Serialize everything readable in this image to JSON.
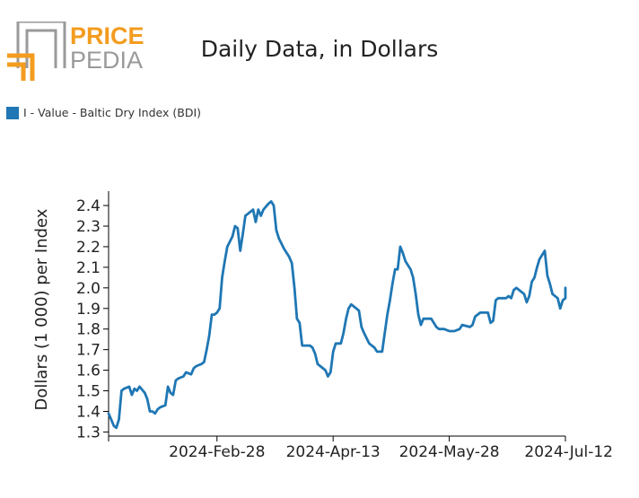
{
  "logo": {
    "word1": "PRICE",
    "word2": "PEDIA",
    "accent": "#f39c1f",
    "gray": "#9a9a9a"
  },
  "title": "Daily Data, in Dollars",
  "legend": {
    "label": "I - Value - Baltic Dry Index (BDI)"
  },
  "colors": {
    "series": "#1f77b4",
    "axis": "#000000",
    "text": "#222222"
  },
  "chart_data": {
    "type": "line",
    "title": "Daily Data, in Dollars",
    "ylabel": "Dollars (1 000) per Index",
    "ylim": [
      1.28,
      2.47
    ],
    "yticks": [
      1.3,
      1.4,
      1.5,
      1.6,
      1.7,
      1.8,
      1.9,
      2.0,
      2.1,
      2.2,
      2.3,
      2.4
    ],
    "ytick_labels": [
      "1.3",
      "1.4",
      "1.5",
      "1.6",
      "1.7",
      "1.8",
      "1.9",
      "2.0",
      "2.1",
      "2.2",
      "2.3",
      "2.4"
    ],
    "xlim": [
      "2024-01-17",
      "2024-07-12"
    ],
    "xticks": [
      "2024-01-17",
      "2024-02-28",
      "2024-04-13",
      "2024-05-28",
      "2024-07-12"
    ],
    "xtick_labels": [
      "",
      "2024-Feb-28",
      "2024-Apr-13",
      "2024-May-28",
      "2024-Jul-12"
    ],
    "legend_position": "top-left",
    "grid": false,
    "series": [
      {
        "name": "I - Value - Baltic Dry Index (BDI)",
        "color": "#1f77b4",
        "points": [
          [
            "2024-01-17",
            1.39
          ],
          [
            "2024-01-18",
            1.36
          ],
          [
            "2024-01-19",
            1.33
          ],
          [
            "2024-01-20",
            1.32
          ],
          [
            "2024-01-21",
            1.36
          ],
          [
            "2024-01-22",
            1.5
          ],
          [
            "2024-01-23",
            1.51
          ],
          [
            "2024-01-25",
            1.52
          ],
          [
            "2024-01-26",
            1.48
          ],
          [
            "2024-01-27",
            1.51
          ],
          [
            "2024-01-28",
            1.5
          ],
          [
            "2024-01-29",
            1.52
          ],
          [
            "2024-01-31",
            1.49
          ],
          [
            "2024-02-01",
            1.46
          ],
          [
            "2024-02-02",
            1.4
          ],
          [
            "2024-02-03",
            1.4
          ],
          [
            "2024-02-04",
            1.39
          ],
          [
            "2024-02-05",
            1.41
          ],
          [
            "2024-02-06",
            1.42
          ],
          [
            "2024-02-08",
            1.43
          ],
          [
            "2024-02-09",
            1.52
          ],
          [
            "2024-02-10",
            1.49
          ],
          [
            "2024-02-11",
            1.48
          ],
          [
            "2024-02-12",
            1.55
          ],
          [
            "2024-02-13",
            1.56
          ],
          [
            "2024-02-15",
            1.57
          ],
          [
            "2024-02-16",
            1.59
          ],
          [
            "2024-02-18",
            1.58
          ],
          [
            "2024-02-19",
            1.61
          ],
          [
            "2024-02-20",
            1.62
          ],
          [
            "2024-02-22",
            1.63
          ],
          [
            "2024-02-23",
            1.64
          ],
          [
            "2024-02-24",
            1.7
          ],
          [
            "2024-02-25",
            1.77
          ],
          [
            "2024-02-26",
            1.87
          ],
          [
            "2024-02-27",
            1.87
          ],
          [
            "2024-02-28",
            1.88
          ],
          [
            "2024-02-29",
            1.9
          ],
          [
            "2024-03-01",
            2.05
          ],
          [
            "2024-03-02",
            2.13
          ],
          [
            "2024-03-03",
            2.2
          ],
          [
            "2024-03-05",
            2.25
          ],
          [
            "2024-03-06",
            2.3
          ],
          [
            "2024-03-07",
            2.29
          ],
          [
            "2024-03-08",
            2.18
          ],
          [
            "2024-03-09",
            2.26
          ],
          [
            "2024-03-10",
            2.35
          ],
          [
            "2024-03-11",
            2.36
          ],
          [
            "2024-03-13",
            2.38
          ],
          [
            "2024-03-14",
            2.32
          ],
          [
            "2024-03-15",
            2.38
          ],
          [
            "2024-03-16",
            2.35
          ],
          [
            "2024-03-17",
            2.38
          ],
          [
            "2024-03-19",
            2.41
          ],
          [
            "2024-03-20",
            2.42
          ],
          [
            "2024-03-21",
            2.4
          ],
          [
            "2024-03-22",
            2.28
          ],
          [
            "2024-03-23",
            2.24
          ],
          [
            "2024-03-25",
            2.19
          ],
          [
            "2024-03-27",
            2.15
          ],
          [
            "2024-03-28",
            2.12
          ],
          [
            "2024-03-29",
            2.0
          ],
          [
            "2024-03-30",
            1.85
          ],
          [
            "2024-03-31",
            1.83
          ],
          [
            "2024-04-01",
            1.72
          ],
          [
            "2024-04-04",
            1.72
          ],
          [
            "2024-04-05",
            1.71
          ],
          [
            "2024-04-06",
            1.68
          ],
          [
            "2024-04-07",
            1.63
          ],
          [
            "2024-04-08",
            1.62
          ],
          [
            "2024-04-10",
            1.6
          ],
          [
            "2024-04-11",
            1.57
          ],
          [
            "2024-04-12",
            1.59
          ],
          [
            "2024-04-13",
            1.69
          ],
          [
            "2024-04-14",
            1.73
          ],
          [
            "2024-04-16",
            1.73
          ],
          [
            "2024-04-17",
            1.78
          ],
          [
            "2024-04-18",
            1.85
          ],
          [
            "2024-04-19",
            1.9
          ],
          [
            "2024-04-20",
            1.92
          ],
          [
            "2024-04-21",
            1.91
          ],
          [
            "2024-04-23",
            1.89
          ],
          [
            "2024-04-24",
            1.81
          ],
          [
            "2024-04-25",
            1.78
          ],
          [
            "2024-04-27",
            1.73
          ],
          [
            "2024-04-29",
            1.71
          ],
          [
            "2024-04-30",
            1.69
          ],
          [
            "2024-05-02",
            1.69
          ],
          [
            "2024-05-04",
            1.87
          ],
          [
            "2024-05-05",
            1.94
          ],
          [
            "2024-05-06",
            2.02
          ],
          [
            "2024-05-07",
            2.09
          ],
          [
            "2024-05-08",
            2.09
          ],
          [
            "2024-05-09",
            2.2
          ],
          [
            "2024-05-10",
            2.17
          ],
          [
            "2024-05-11",
            2.13
          ],
          [
            "2024-05-13",
            2.09
          ],
          [
            "2024-05-14",
            2.05
          ],
          [
            "2024-05-15",
            1.97
          ],
          [
            "2024-05-16",
            1.87
          ],
          [
            "2024-05-17",
            1.82
          ],
          [
            "2024-05-18",
            1.85
          ],
          [
            "2024-05-21",
            1.85
          ],
          [
            "2024-05-23",
            1.81
          ],
          [
            "2024-05-24",
            1.8
          ],
          [
            "2024-05-26",
            1.8
          ],
          [
            "2024-05-28",
            1.79
          ],
          [
            "2024-05-30",
            1.79
          ],
          [
            "2024-06-01",
            1.8
          ],
          [
            "2024-06-02",
            1.82
          ],
          [
            "2024-06-05",
            1.81
          ],
          [
            "2024-06-06",
            1.82
          ],
          [
            "2024-06-07",
            1.86
          ],
          [
            "2024-06-09",
            1.88
          ],
          [
            "2024-06-12",
            1.88
          ],
          [
            "2024-06-13",
            1.83
          ],
          [
            "2024-06-14",
            1.84
          ],
          [
            "2024-06-15",
            1.94
          ],
          [
            "2024-06-16",
            1.95
          ],
          [
            "2024-06-19",
            1.95
          ],
          [
            "2024-06-20",
            1.96
          ],
          [
            "2024-06-21",
            1.95
          ],
          [
            "2024-06-22",
            1.99
          ],
          [
            "2024-06-23",
            2.0
          ],
          [
            "2024-06-25",
            1.98
          ],
          [
            "2024-06-26",
            1.97
          ],
          [
            "2024-06-27",
            1.93
          ],
          [
            "2024-06-28",
            1.96
          ],
          [
            "2024-06-29",
            2.03
          ],
          [
            "2024-06-30",
            2.05
          ],
          [
            "2024-07-01",
            2.1
          ],
          [
            "2024-07-02",
            2.14
          ],
          [
            "2024-07-03",
            2.16
          ],
          [
            "2024-07-04",
            2.18
          ],
          [
            "2024-07-05",
            2.06
          ],
          [
            "2024-07-06",
            2.02
          ],
          [
            "2024-07-07",
            1.97
          ],
          [
            "2024-07-09",
            1.95
          ],
          [
            "2024-07-10",
            1.9
          ],
          [
            "2024-07-11",
            1.94
          ],
          [
            "2024-07-12",
            1.95
          ],
          [
            "2024-07-12",
            2.0
          ]
        ]
      }
    ]
  }
}
